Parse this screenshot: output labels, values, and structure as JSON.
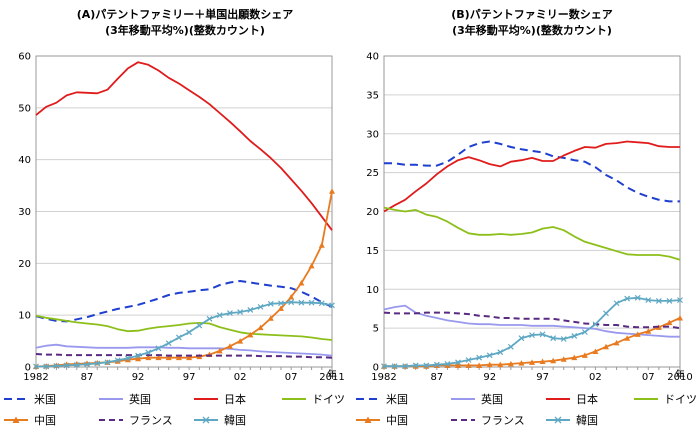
{
  "charts": [
    {
      "title": "(A)パテントファミリー＋単国出願数シェア",
      "subtitle": "(3年移動平均%)(整数カウント)",
      "x_last_label": "2011",
      "x_unit": "年"
    },
    {
      "title": "(B)パテントファミリー数シェア",
      "subtitle": "(3年移動平均%)(整数カウント)",
      "x_last_label": "2010",
      "x_unit": "年"
    }
  ],
  "series_style": [
    {
      "name": "米国",
      "color": "#1f3fd0",
      "dash": "8,5",
      "marker": "none"
    },
    {
      "name": "英国",
      "color": "#9999ee",
      "dash": "",
      "marker": "none"
    },
    {
      "name": "日本",
      "color": "#e01b1b",
      "dash": "",
      "marker": "none"
    },
    {
      "name": "ドイツ",
      "color": "#8dbf1a",
      "dash": "",
      "marker": "none"
    },
    {
      "name": "中国",
      "color": "#e87a1f",
      "dash": "",
      "marker": "triangle"
    },
    {
      "name": "フランス",
      "color": "#5a2a80",
      "dash": "6,4",
      "marker": "none"
    },
    {
      "name": "韓国",
      "color": "#5fa8c4",
      "dash": "",
      "marker": "x"
    }
  ],
  "chart_data": [
    {
      "type": "line",
      "title": "(A)パテントファミリー＋単国出願数シェア",
      "subtitle": "(3年移動平均%)(整数カウント)",
      "xlabel": "年",
      "ylabel": "",
      "x": [
        1982,
        1983,
        1984,
        1985,
        1986,
        1987,
        1988,
        1989,
        1990,
        1991,
        1992,
        1993,
        1994,
        1995,
        1996,
        1997,
        1998,
        1999,
        2000,
        2001,
        2002,
        2003,
        2004,
        2005,
        2006,
        2007,
        2008,
        2009,
        2010,
        2011
      ],
      "xticks": [
        "1982",
        "87",
        "92",
        "97",
        "02",
        "07",
        "2011"
      ],
      "ylim": [
        0,
        60
      ],
      "yticks": [
        0,
        10,
        20,
        30,
        40,
        50,
        60
      ],
      "grid": true,
      "legend": "bottom",
      "series": [
        {
          "name": "米国",
          "values": [
            9.8,
            9.3,
            8.9,
            8.8,
            9.2,
            9.6,
            10.2,
            10.7,
            11.2,
            11.6,
            12.0,
            12.6,
            13.2,
            13.9,
            14.3,
            14.5,
            14.8,
            15.0,
            15.8,
            16.3,
            16.6,
            16.3,
            16.0,
            15.7,
            15.5,
            15.2,
            14.5,
            13.6,
            12.5,
            11.6
          ]
        },
        {
          "name": "英国",
          "values": [
            3.7,
            4.1,
            4.3,
            4.0,
            3.9,
            3.8,
            3.7,
            3.7,
            3.7,
            3.7,
            3.8,
            3.8,
            3.8,
            3.7,
            3.7,
            3.6,
            3.6,
            3.6,
            3.6,
            3.5,
            3.3,
            3.2,
            3.0,
            2.9,
            2.8,
            2.7,
            2.6,
            2.5,
            2.4,
            2.2
          ]
        },
        {
          "name": "日本",
          "values": [
            48.6,
            50.2,
            51.0,
            52.4,
            53.0,
            52.9,
            52.8,
            53.5,
            55.6,
            57.6,
            58.8,
            58.3,
            57.2,
            55.8,
            54.7,
            53.4,
            52.1,
            50.7,
            49.0,
            47.3,
            45.5,
            43.6,
            42.0,
            40.3,
            38.4,
            36.2,
            34.0,
            31.6,
            29.0,
            26.4
          ]
        },
        {
          "name": "ドイツ",
          "values": [
            9.9,
            9.5,
            9.2,
            8.9,
            8.6,
            8.4,
            8.2,
            7.9,
            7.3,
            6.9,
            7.0,
            7.4,
            7.7,
            7.9,
            8.1,
            8.4,
            8.5,
            8.4,
            7.7,
            7.2,
            6.7,
            6.4,
            6.3,
            6.2,
            6.1,
            6.0,
            5.9,
            5.7,
            5.4,
            5.2
          ]
        },
        {
          "name": "中国",
          "values": [
            0.1,
            0.2,
            0.3,
            0.5,
            0.6,
            0.7,
            0.8,
            0.9,
            1.1,
            1.4,
            1.6,
            1.8,
            1.8,
            1.8,
            1.8,
            1.8,
            2.0,
            2.4,
            3.1,
            4.0,
            5.0,
            6.2,
            7.6,
            9.4,
            11.3,
            13.5,
            16.2,
            19.5,
            23.5,
            33.9
          ]
        },
        {
          "name": "フランス",
          "values": [
            2.5,
            2.4,
            2.4,
            2.3,
            2.3,
            2.3,
            2.3,
            2.3,
            2.3,
            2.3,
            2.3,
            2.3,
            2.3,
            2.2,
            2.2,
            2.2,
            2.2,
            2.2,
            2.2,
            2.2,
            2.2,
            2.2,
            2.1,
            2.1,
            2.1,
            2.0,
            2.0,
            1.9,
            1.9,
            1.8
          ]
        },
        {
          "name": "韓国",
          "values": [
            0.1,
            0.1,
            0.2,
            0.3,
            0.4,
            0.5,
            0.7,
            0.9,
            1.3,
            1.7,
            2.2,
            2.8,
            3.6,
            4.6,
            5.7,
            6.7,
            8.0,
            9.3,
            10.0,
            10.4,
            10.6,
            11.0,
            11.6,
            12.2,
            12.3,
            12.5,
            12.4,
            12.4,
            12.3,
            11.9
          ]
        }
      ]
    },
    {
      "type": "line",
      "title": "(B)パテントファミリー数シェア",
      "subtitle": "(3年移動平均%)(整数カウント)",
      "xlabel": "年",
      "ylabel": "",
      "x": [
        1982,
        1983,
        1984,
        1985,
        1986,
        1987,
        1988,
        1989,
        1990,
        1991,
        1992,
        1993,
        1994,
        1995,
        1996,
        1997,
        1998,
        1999,
        2000,
        2001,
        2002,
        2003,
        2004,
        2005,
        2006,
        2007,
        2008,
        2009,
        2010
      ],
      "xticks": [
        "1982",
        "87",
        "92",
        "97",
        "02",
        "07",
        "2010"
      ],
      "ylim": [
        0,
        40
      ],
      "yticks": [
        0,
        5,
        10,
        15,
        20,
        25,
        30,
        35,
        40
      ],
      "grid": true,
      "legend": "bottom",
      "series": [
        {
          "name": "米国",
          "values": [
            26.2,
            26.2,
            26.0,
            26.0,
            25.9,
            25.9,
            26.4,
            27.3,
            28.3,
            28.8,
            29.0,
            28.7,
            28.3,
            28.0,
            27.8,
            27.6,
            27.1,
            26.9,
            26.6,
            26.4,
            25.7,
            24.7,
            24.0,
            23.1,
            22.4,
            21.9,
            21.5,
            21.3,
            21.3
          ]
        },
        {
          "name": "英国",
          "values": [
            7.4,
            7.7,
            7.9,
            7.0,
            6.6,
            6.3,
            6.0,
            5.8,
            5.6,
            5.5,
            5.5,
            5.4,
            5.4,
            5.4,
            5.3,
            5.3,
            5.3,
            5.2,
            5.1,
            5.0,
            4.9,
            4.6,
            4.4,
            4.3,
            4.2,
            4.1,
            4.0,
            3.9,
            3.9
          ]
        },
        {
          "name": "日本",
          "values": [
            20.0,
            20.8,
            21.5,
            22.6,
            23.6,
            24.8,
            25.8,
            26.6,
            27.0,
            26.6,
            26.1,
            25.8,
            26.4,
            26.6,
            26.9,
            26.5,
            26.5,
            27.2,
            27.8,
            28.3,
            28.2,
            28.7,
            28.8,
            29.0,
            28.9,
            28.8,
            28.4,
            28.3,
            28.3
          ]
        },
        {
          "name": "ドイツ",
          "values": [
            20.5,
            20.2,
            20.0,
            20.2,
            19.6,
            19.3,
            18.7,
            17.9,
            17.2,
            17.0,
            17.0,
            17.1,
            17.0,
            17.1,
            17.3,
            17.8,
            18.0,
            17.6,
            16.8,
            16.1,
            15.7,
            15.3,
            14.9,
            14.5,
            14.4,
            14.4,
            14.4,
            14.2,
            13.8
          ]
        },
        {
          "name": "中国",
          "values": [
            0.1,
            0.1,
            0.1,
            0.1,
            0.1,
            0.2,
            0.2,
            0.2,
            0.2,
            0.2,
            0.3,
            0.3,
            0.4,
            0.5,
            0.6,
            0.7,
            0.8,
            1.0,
            1.2,
            1.5,
            2.0,
            2.6,
            3.1,
            3.7,
            4.2,
            4.6,
            5.1,
            5.7,
            6.3
          ]
        },
        {
          "name": "フランス",
          "values": [
            7.0,
            6.9,
            6.9,
            6.9,
            7.0,
            7.0,
            7.0,
            6.9,
            6.8,
            6.6,
            6.5,
            6.3,
            6.3,
            6.2,
            6.2,
            6.2,
            6.2,
            6.0,
            5.8,
            5.6,
            5.5,
            5.4,
            5.4,
            5.2,
            5.1,
            5.1,
            5.2,
            5.2,
            5.0
          ]
        },
        {
          "name": "韓国",
          "values": [
            0.1,
            0.1,
            0.1,
            0.2,
            0.2,
            0.3,
            0.4,
            0.6,
            0.9,
            1.2,
            1.5,
            1.9,
            2.6,
            3.7,
            4.1,
            4.2,
            3.7,
            3.6,
            4.0,
            4.5,
            5.5,
            6.9,
            8.2,
            8.8,
            8.9,
            8.6,
            8.5,
            8.5,
            8.6
          ]
        }
      ]
    }
  ]
}
